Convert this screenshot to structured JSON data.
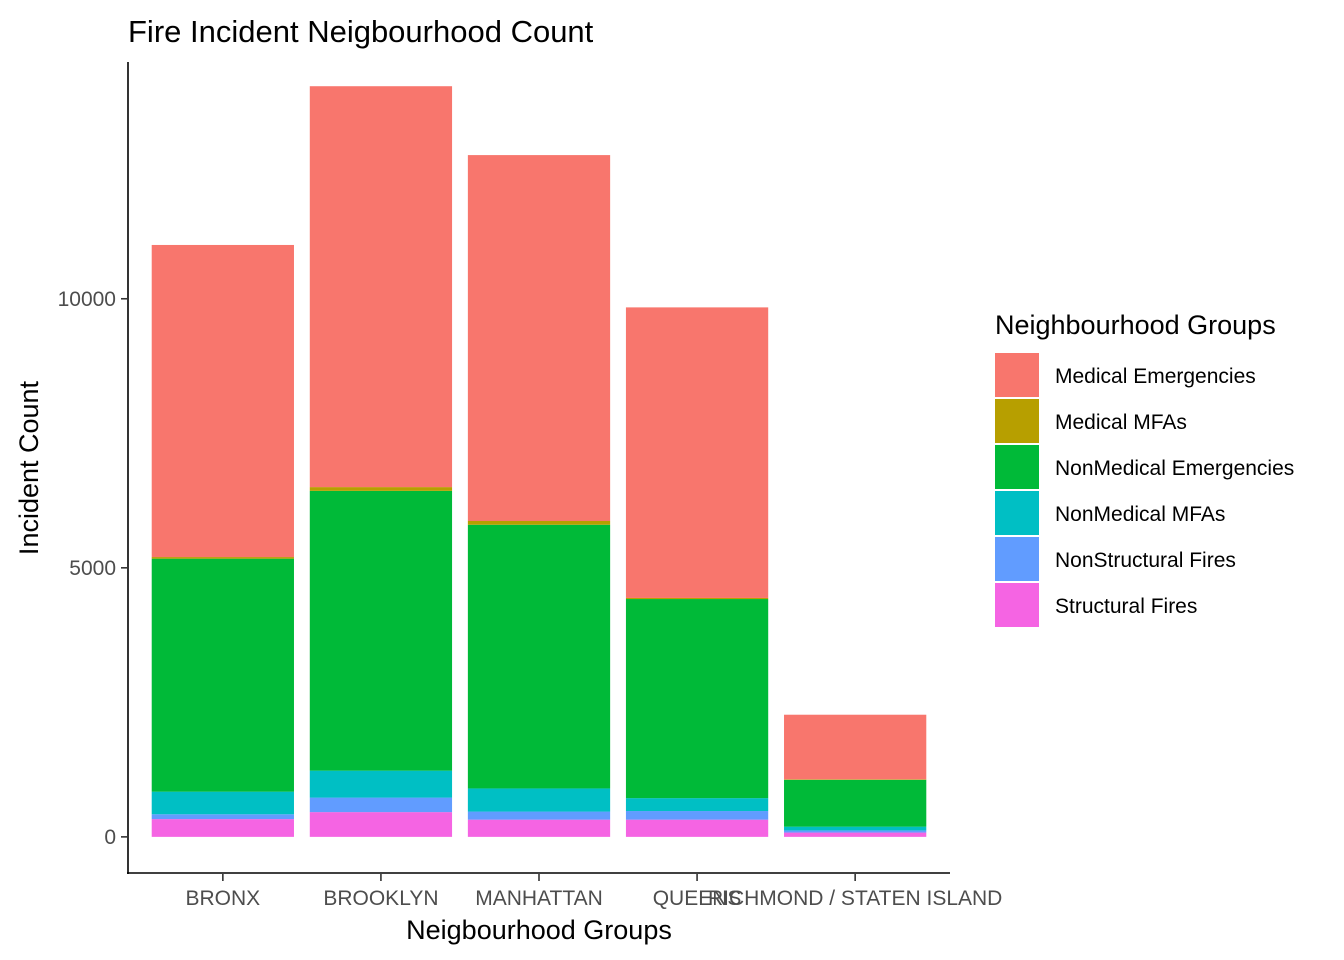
{
  "chart_data": {
    "type": "bar",
    "stacked": true,
    "title": "Fire Incident Neigbourhood Count",
    "xlabel": "Neigbourhood Groups",
    "ylabel": "Incident Count",
    "ylim": [
      -690,
      14400
    ],
    "yticks": [
      0,
      5000,
      10000
    ],
    "grid": false,
    "legend_position": "right",
    "legend_title": "Neighbourhood Groups",
    "categories": [
      "BRONX",
      "BROOKLYN",
      "MANHATTAN",
      "QUEENS",
      "RICHMOND / STATEN ISLAND"
    ],
    "series": [
      {
        "name": "Medical Emergencies",
        "color": "#F8766D",
        "values": [
          5800,
          7450,
          6800,
          5400,
          1200
        ]
      },
      {
        "name": "Medical MFAs",
        "color": "#B79F00",
        "values": [
          30,
          70,
          70,
          20,
          10
        ]
      },
      {
        "name": "NonMedical Emergencies",
        "color": "#00BA38",
        "values": [
          4330,
          5200,
          4900,
          3700,
          870
        ]
      },
      {
        "name": "NonMedical MFAs",
        "color": "#00BFC4",
        "values": [
          420,
          500,
          430,
          240,
          70
        ]
      },
      {
        "name": "NonStructural Fires",
        "color": "#619CFF",
        "values": [
          90,
          270,
          150,
          160,
          40
        ]
      },
      {
        "name": "Structural Fires",
        "color": "#F564E3",
        "values": [
          330,
          460,
          320,
          320,
          80
        ]
      }
    ]
  }
}
